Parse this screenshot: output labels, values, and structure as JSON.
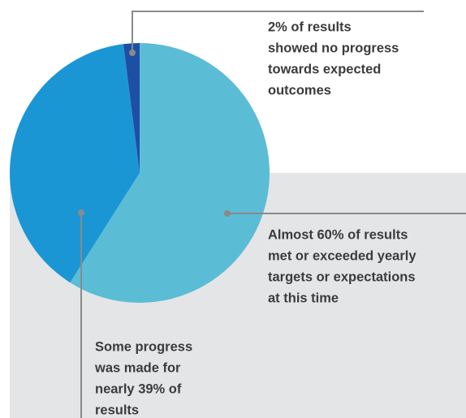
{
  "chart_data": {
    "type": "pie",
    "values": [
      59,
      39,
      2
    ],
    "colors": [
      "#5bbcd6",
      "#1b96d4",
      "#1e4fa5"
    ],
    "annotations": [
      [
        "Almost 60% of results",
        "met or exceeded yearly",
        "targets or expectations",
        "at this time"
      ],
      [
        "Some progress",
        "was made for",
        "nearly 39% of",
        "results"
      ],
      [
        "2% of results",
        "showed no progress",
        "towards expected",
        "outcomes"
      ]
    ]
  }
}
